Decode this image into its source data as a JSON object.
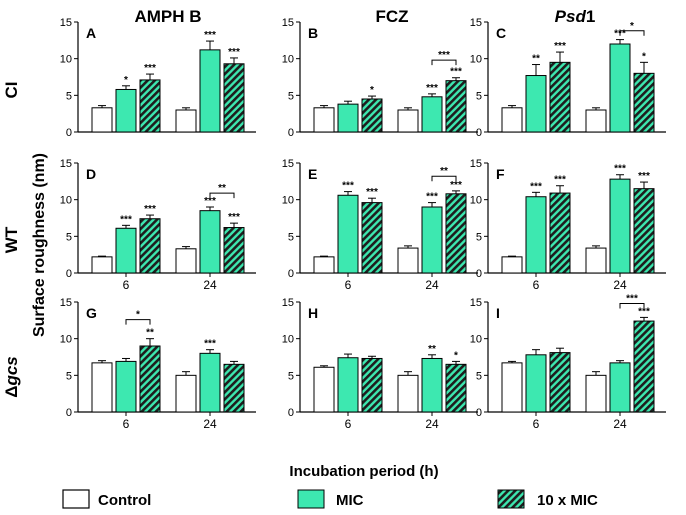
{
  "figure": {
    "column_titles": [
      "AMPH B",
      "FCZ",
      "Psd1"
    ],
    "column_title_parts": [
      [
        "AMPH B",
        ""
      ],
      [
        "FCZ",
        ""
      ],
      [
        "Psd",
        "1"
      ]
    ],
    "row_titles": [
      [
        "CI",
        ""
      ],
      [
        "WT",
        ""
      ],
      [
        "Δ",
        "gcs"
      ]
    ],
    "ylabel": "Surface roughness (nm)",
    "xlabel": "Incubation period (h)",
    "legend": [
      {
        "label": "Control",
        "style": "open"
      },
      {
        "label": "MIC",
        "style": "filled"
      },
      {
        "label": "10 x MIC",
        "style": "hatched"
      }
    ],
    "colors": {
      "mic": "#3de8b0",
      "control": "#ffffff",
      "hatch": "#1e1e1e",
      "axis": "#000000"
    }
  },
  "chart_data": [
    {
      "type": "bar",
      "panel": "A",
      "row": "CI",
      "col": "AMPH B",
      "categories": [
        "6",
        "24"
      ],
      "show_xticks": false,
      "ylim": [
        0,
        15
      ],
      "yticks": [
        0,
        5,
        10,
        15
      ],
      "series": [
        {
          "name": "Control",
          "values": [
            3.3,
            3.0
          ],
          "errors": [
            0.3,
            0.3
          ]
        },
        {
          "name": "MIC",
          "values": [
            5.8,
            11.2
          ],
          "errors": [
            0.5,
            1.2
          ]
        },
        {
          "name": "10 x MIC",
          "values": [
            7.1,
            9.3
          ],
          "errors": [
            0.8,
            0.8
          ]
        }
      ],
      "stars": [
        [
          "",
          "*",
          "***"
        ],
        [
          "",
          "***",
          "***"
        ]
      ],
      "brackets": []
    },
    {
      "type": "bar",
      "panel": "B",
      "row": "CI",
      "col": "FCZ",
      "categories": [
        "6",
        "24"
      ],
      "show_xticks": false,
      "ylim": [
        0,
        15
      ],
      "yticks": [
        0,
        5,
        10,
        15
      ],
      "series": [
        {
          "name": "Control",
          "values": [
            3.3,
            3.0
          ],
          "errors": [
            0.3,
            0.3
          ]
        },
        {
          "name": "MIC",
          "values": [
            3.8,
            4.8
          ],
          "errors": [
            0.4,
            0.4
          ]
        },
        {
          "name": "10 x MIC",
          "values": [
            4.5,
            7.0
          ],
          "errors": [
            0.4,
            0.4
          ]
        }
      ],
      "stars": [
        [
          "",
          "",
          "*"
        ],
        [
          "",
          "***",
          "***"
        ]
      ],
      "brackets": [
        {
          "group": 1,
          "from": 1,
          "to": 2,
          "y": 9.8,
          "label": "***"
        }
      ]
    },
    {
      "type": "bar",
      "panel": "C",
      "row": "CI",
      "col": "Psd1",
      "categories": [
        "6",
        "24"
      ],
      "show_xticks": false,
      "ylim": [
        0,
        15
      ],
      "yticks": [
        0,
        5,
        10,
        15
      ],
      "series": [
        {
          "name": "Control",
          "values": [
            3.3,
            3.0
          ],
          "errors": [
            0.3,
            0.3
          ]
        },
        {
          "name": "MIC",
          "values": [
            7.7,
            12.0
          ],
          "errors": [
            1.5,
            0.6
          ]
        },
        {
          "name": "10 x MIC",
          "values": [
            9.5,
            8.0
          ],
          "errors": [
            1.4,
            1.5
          ]
        }
      ],
      "stars": [
        [
          "",
          "**",
          "***"
        ],
        [
          "",
          "***",
          "*"
        ]
      ],
      "brackets": [
        {
          "group": 1,
          "from": 1,
          "to": 2,
          "y": 13.8,
          "label": "*"
        }
      ]
    },
    {
      "type": "bar",
      "panel": "D",
      "row": "WT",
      "col": "AMPH B",
      "categories": [
        "6",
        "24"
      ],
      "show_xticks": true,
      "ylim": [
        0,
        15
      ],
      "yticks": [
        0,
        5,
        10,
        15
      ],
      "series": [
        {
          "name": "Control",
          "values": [
            2.2,
            3.3
          ],
          "errors": [
            0.1,
            0.3
          ]
        },
        {
          "name": "MIC",
          "values": [
            6.1,
            8.5
          ],
          "errors": [
            0.4,
            0.5
          ]
        },
        {
          "name": "10 x MIC",
          "values": [
            7.4,
            6.2
          ],
          "errors": [
            0.5,
            0.6
          ]
        }
      ],
      "stars": [
        [
          "",
          "***",
          "***"
        ],
        [
          "",
          "***",
          "***"
        ]
      ],
      "brackets": [
        {
          "group": 1,
          "from": 1,
          "to": 2,
          "y": 10.9,
          "label": "**"
        }
      ]
    },
    {
      "type": "bar",
      "panel": "E",
      "row": "WT",
      "col": "FCZ",
      "categories": [
        "6",
        "24"
      ],
      "show_xticks": true,
      "ylim": [
        0,
        15
      ],
      "yticks": [
        0,
        5,
        10,
        15
      ],
      "series": [
        {
          "name": "Control",
          "values": [
            2.2,
            3.4
          ],
          "errors": [
            0.1,
            0.3
          ]
        },
        {
          "name": "MIC",
          "values": [
            10.6,
            9.0
          ],
          "errors": [
            0.5,
            0.6
          ]
        },
        {
          "name": "10 x MIC",
          "values": [
            9.6,
            10.8
          ],
          "errors": [
            0.6,
            0.4
          ]
        }
      ],
      "stars": [
        [
          "",
          "***",
          "***"
        ],
        [
          "",
          "***",
          "***"
        ]
      ],
      "brackets": [
        {
          "group": 1,
          "from": 1,
          "to": 2,
          "y": 13.2,
          "label": "**"
        }
      ]
    },
    {
      "type": "bar",
      "panel": "F",
      "row": "WT",
      "col": "Psd1",
      "categories": [
        "6",
        "24"
      ],
      "show_xticks": true,
      "ylim": [
        0,
        15
      ],
      "yticks": [
        0,
        5,
        10,
        15
      ],
      "series": [
        {
          "name": "Control",
          "values": [
            2.2,
            3.4
          ],
          "errors": [
            0.1,
            0.3
          ]
        },
        {
          "name": "MIC",
          "values": [
            10.4,
            12.8
          ],
          "errors": [
            0.6,
            0.6
          ]
        },
        {
          "name": "10 x MIC",
          "values": [
            10.9,
            11.5
          ],
          "errors": [
            1.0,
            0.9
          ]
        }
      ],
      "stars": [
        [
          "",
          "***",
          "***"
        ],
        [
          "",
          "***",
          "***"
        ]
      ],
      "brackets": []
    },
    {
      "type": "bar",
      "panel": "G",
      "row": "Δgcs",
      "col": "AMPH B",
      "categories": [
        "6",
        "24"
      ],
      "show_xticks": true,
      "ylim": [
        0,
        15
      ],
      "yticks": [
        0,
        5,
        10,
        15
      ],
      "series": [
        {
          "name": "Control",
          "values": [
            6.7,
            5.0
          ],
          "errors": [
            0.3,
            0.5
          ]
        },
        {
          "name": "MIC",
          "values": [
            6.9,
            8.0
          ],
          "errors": [
            0.4,
            0.5
          ]
        },
        {
          "name": "10 x MIC",
          "values": [
            9.0,
            6.5
          ],
          "errors": [
            1.0,
            0.4
          ]
        }
      ],
      "stars": [
        [
          "",
          "",
          "**"
        ],
        [
          "",
          "***",
          ""
        ]
      ],
      "brackets": [
        {
          "group": 0,
          "from": 1,
          "to": 2,
          "y": 12.6,
          "label": "*"
        }
      ]
    },
    {
      "type": "bar",
      "panel": "H",
      "row": "Δgcs",
      "col": "FCZ",
      "categories": [
        "6",
        "24"
      ],
      "show_xticks": true,
      "ylim": [
        0,
        15
      ],
      "yticks": [
        0,
        5,
        10,
        15
      ],
      "series": [
        {
          "name": "Control",
          "values": [
            6.1,
            5.0
          ],
          "errors": [
            0.2,
            0.5
          ]
        },
        {
          "name": "MIC",
          "values": [
            7.4,
            7.3
          ],
          "errors": [
            0.5,
            0.5
          ]
        },
        {
          "name": "10 x MIC",
          "values": [
            7.3,
            6.5
          ],
          "errors": [
            0.3,
            0.4
          ]
        }
      ],
      "stars": [
        [
          "",
          "",
          ""
        ],
        [
          "",
          "**",
          "*"
        ]
      ],
      "brackets": []
    },
    {
      "type": "bar",
      "panel": "I",
      "row": "Δgcs",
      "col": "Psd1",
      "categories": [
        "6",
        "24"
      ],
      "show_xticks": true,
      "ylim": [
        0,
        15
      ],
      "yticks": [
        0,
        5,
        10,
        15
      ],
      "series": [
        {
          "name": "Control",
          "values": [
            6.7,
            5.0
          ],
          "errors": [
            0.2,
            0.5
          ]
        },
        {
          "name": "MIC",
          "values": [
            7.8,
            6.7
          ],
          "errors": [
            0.7,
            0.3
          ]
        },
        {
          "name": "10 x MIC",
          "values": [
            8.1,
            12.4
          ],
          "errors": [
            0.6,
            0.5
          ]
        }
      ],
      "stars": [
        [
          "",
          "",
          ""
        ],
        [
          "",
          "",
          "***"
        ]
      ],
      "brackets": [
        {
          "group": 1,
          "from": 1,
          "to": 2,
          "y": 14.8,
          "label": "***"
        }
      ]
    }
  ]
}
